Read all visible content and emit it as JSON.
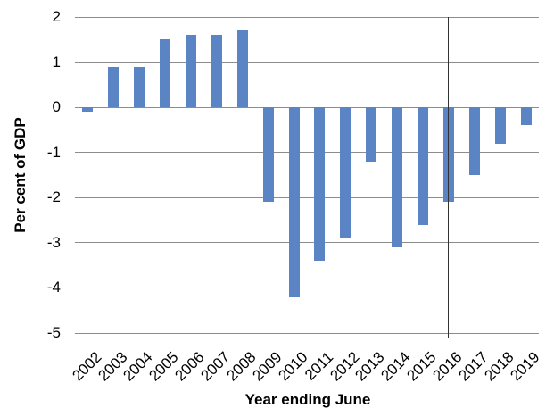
{
  "chart_data": {
    "type": "bar",
    "title": "",
    "xlabel": "Year ending June",
    "ylabel": "Per cent of GDP",
    "categories": [
      "2002",
      "2003",
      "2004",
      "2005",
      "2006",
      "2007",
      "2008",
      "2009",
      "2010",
      "2011",
      "2012",
      "2013",
      "2014",
      "2015",
      "2016",
      "2017",
      "2018",
      "2019"
    ],
    "values": [
      -0.1,
      0.9,
      0.9,
      1.5,
      1.6,
      1.6,
      1.7,
      -2.1,
      -4.2,
      -3.4,
      -2.9,
      -1.2,
      -3.1,
      -2.6,
      -2.1,
      -1.5,
      -0.8,
      -0.4
    ],
    "ylim": [
      -5,
      2
    ],
    "yticks": [
      2,
      1,
      0,
      -1,
      -2,
      -3,
      -4,
      -5
    ],
    "grid": true,
    "legend": false,
    "bar_color": "#5B84C5",
    "gridline_color": "#8C8C8C",
    "marker_line": {
      "category": "2016",
      "color": "#333333"
    }
  }
}
